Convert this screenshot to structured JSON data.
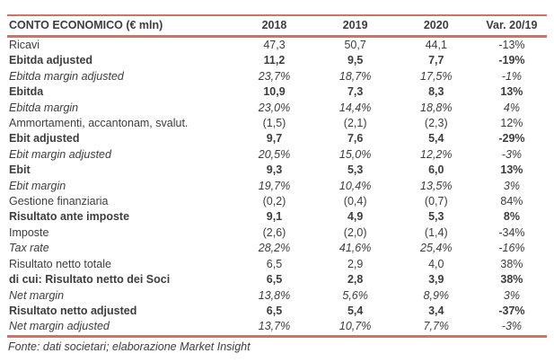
{
  "colors": {
    "accent": "#d0716b",
    "text": "#3d3d3d"
  },
  "table": {
    "title": "CONTO ECONOMICO (€ mln)",
    "columns": [
      "2018",
      "2019",
      "2020",
      "Var. 20/19"
    ],
    "rows": [
      {
        "label": "Ricavi",
        "style": "normal",
        "values": [
          "47,3",
          "50,7",
          "44,1",
          "-13%"
        ]
      },
      {
        "label": "Ebitda adjusted",
        "style": "bold",
        "values": [
          "11,2",
          "9,5",
          "7,7",
          "-19%"
        ]
      },
      {
        "label": "Ebitda margin adjusted",
        "style": "italic",
        "values": [
          "23,7%",
          "18,7%",
          "17,5%",
          "-1%"
        ]
      },
      {
        "label": "Ebitda",
        "style": "bold",
        "values": [
          "10,9",
          "7,3",
          "8,3",
          "13%"
        ]
      },
      {
        "label": "Ebitda margin",
        "style": "italic",
        "values": [
          "23,0%",
          "14,4%",
          "18,8%",
          "4%"
        ]
      },
      {
        "label": "Ammortamenti, accantonam, svalut.",
        "style": "normal",
        "values": [
          "(1,5)",
          "(2,1)",
          "(2,3)",
          "12%"
        ]
      },
      {
        "label": "Ebit adjusted",
        "style": "bold",
        "values": [
          "9,7",
          "7,6",
          "5,4",
          "-29%"
        ]
      },
      {
        "label": "Ebit margin adjusted",
        "style": "italic",
        "values": [
          "20,5%",
          "15,0%",
          "12,2%",
          "-3%"
        ]
      },
      {
        "label": "Ebit",
        "style": "bold",
        "values": [
          "9,3",
          "5,3",
          "6,0",
          "13%"
        ]
      },
      {
        "label": "Ebit margin",
        "style": "italic",
        "values": [
          "19,7%",
          "10,4%",
          "13,5%",
          "3%"
        ]
      },
      {
        "label": "Gestione finanziaria",
        "style": "normal",
        "values": [
          "(0,2)",
          "(0,4)",
          "(0,7)",
          "84%"
        ]
      },
      {
        "label": "Risultato ante imposte",
        "style": "bold",
        "values": [
          "9,1",
          "4,9",
          "5,3",
          "8%"
        ]
      },
      {
        "label": "Imposte",
        "style": "normal",
        "values": [
          "(2,6)",
          "(2,0)",
          "(1,4)",
          "-34%"
        ]
      },
      {
        "label": "Tax rate",
        "style": "italic",
        "values": [
          "28,2%",
          "41,6%",
          "25,4%",
          "-16%"
        ]
      },
      {
        "label": "Risultato netto totale",
        "style": "normal",
        "values": [
          "6,5",
          "2,9",
          "4,0",
          "38%"
        ]
      },
      {
        "label": "di cui: Risultato netto dei Soci",
        "style": "bold",
        "values": [
          "6,5",
          "2,8",
          "3,9",
          "38%"
        ]
      },
      {
        "label": "Net margin",
        "style": "italic",
        "values": [
          "13,8%",
          "5,6%",
          "8,9%",
          "3%"
        ]
      },
      {
        "label": "Risultato netto adjusted",
        "style": "bold",
        "values": [
          "6,5",
          "5,4",
          "3,4",
          "-37%"
        ]
      },
      {
        "label": "Net margin adjusted",
        "style": "italic",
        "values": [
          "13,7%",
          "10,7%",
          "7,7%",
          "-3%"
        ]
      }
    ],
    "footer": "Fonte: dati societari; elaborazione Market Insight"
  }
}
